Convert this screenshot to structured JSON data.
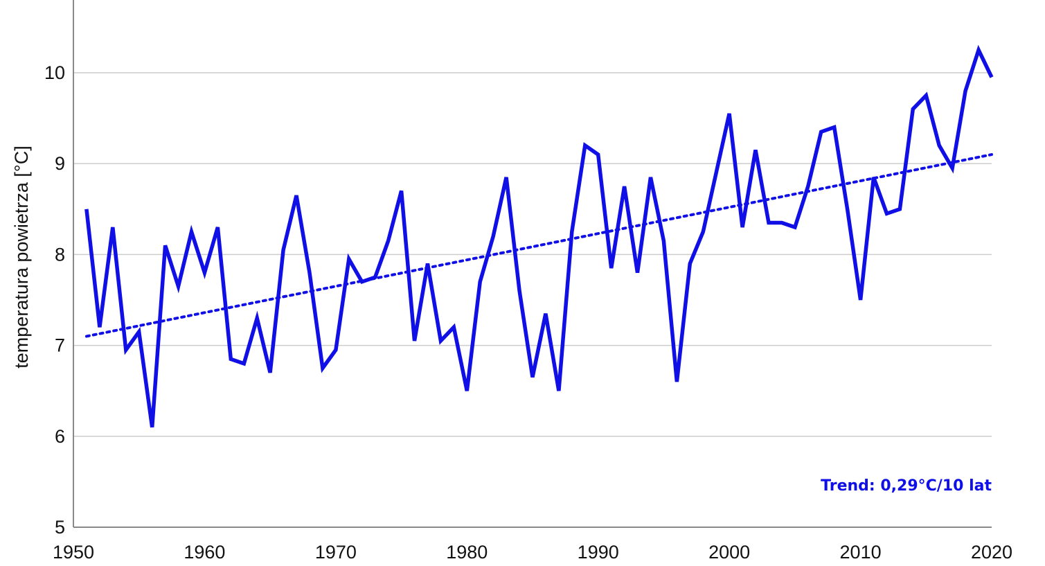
{
  "chart_data": {
    "type": "line",
    "title": "",
    "xlabel": "",
    "ylabel": "temperatura powietrza [°C]",
    "xlim": [
      1950,
      2020
    ],
    "ylim": [
      5,
      10.8
    ],
    "xticks": [
      1950,
      1960,
      1970,
      1980,
      1990,
      2000,
      2010,
      2020
    ],
    "yticks": [
      5,
      6,
      7,
      8,
      9,
      10
    ],
    "grid": true,
    "legend": "none",
    "colors": {
      "series": "#1010e6",
      "grid": "#cccccc",
      "axis": "#888888",
      "text": "#111111"
    },
    "series": [
      {
        "x": [
          1951,
          1952,
          1953,
          1954,
          1955,
          1956,
          1957,
          1958,
          1959,
          1960,
          1961,
          1962,
          1963,
          1964,
          1965,
          1966,
          1967,
          1968,
          1969,
          1970,
          1971,
          1972,
          1973,
          1974,
          1975,
          1976,
          1977,
          1978,
          1979,
          1980,
          1981,
          1982,
          1983,
          1984,
          1985,
          1986,
          1987,
          1988,
          1989,
          1990,
          1991,
          1992,
          1993,
          1994,
          1995,
          1996,
          1997,
          1998,
          1999,
          2000,
          2001,
          2002,
          2003,
          2004,
          2005,
          2006,
          2007,
          2008,
          2009,
          2010,
          2011,
          2012,
          2013,
          2014,
          2015,
          2016,
          2017,
          2018,
          2019,
          2020
        ],
        "values": [
          8.5,
          7.2,
          8.3,
          6.95,
          7.15,
          6.1,
          8.1,
          7.65,
          8.25,
          7.8,
          8.3,
          6.85,
          6.8,
          7.3,
          6.7,
          8.05,
          8.65,
          7.8,
          6.75,
          6.95,
          7.95,
          7.7,
          7.75,
          8.15,
          8.7,
          7.05,
          7.9,
          7.05,
          7.2,
          6.5,
          7.7,
          8.2,
          8.85,
          7.6,
          6.65,
          7.35,
          6.5,
          8.25,
          9.2,
          9.1,
          7.85,
          8.75,
          7.8,
          8.85,
          8.15,
          6.6,
          7.9,
          8.25,
          8.9,
          9.55,
          8.3,
          9.15,
          8.35,
          8.35,
          8.3,
          8.75,
          9.35,
          9.4,
          8.5,
          7.5,
          8.85,
          8.45,
          8.5,
          9.6,
          9.75,
          9.2,
          8.95,
          9.8,
          10.25,
          9.95
        ]
      },
      {
        "type": "trendline",
        "style": "dotted",
        "x": [
          1951,
          2020
        ],
        "values": [
          7.1,
          9.1
        ]
      }
    ],
    "annotations": [
      {
        "text": "Trend: 0,29°C/10 lat",
        "position": "bottom-right"
      }
    ]
  }
}
